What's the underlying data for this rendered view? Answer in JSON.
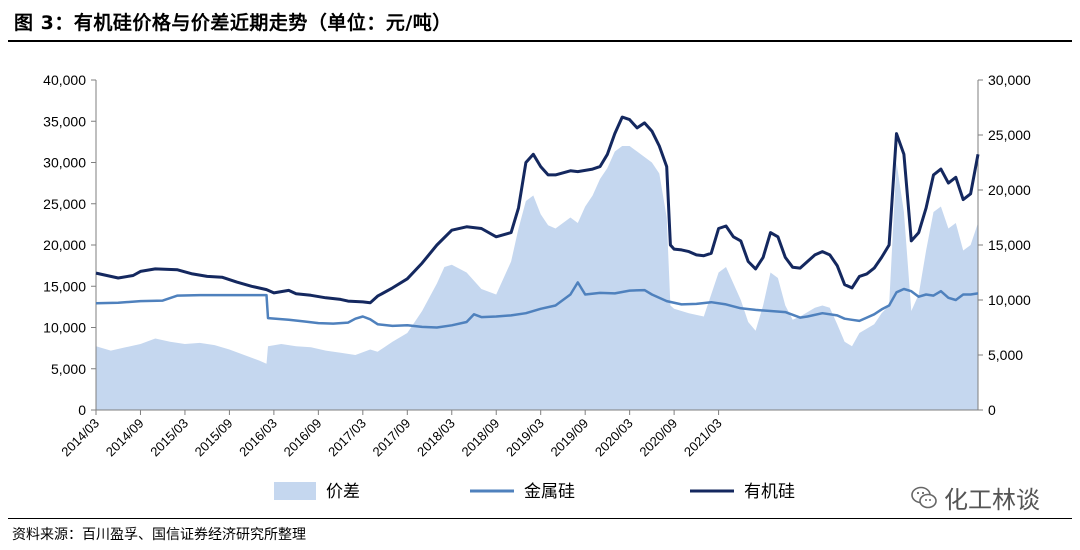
{
  "title": "图 3：有机硅价格与价差近期走势（单位：元/吨）",
  "source": "资料来源：百川盈孚、国信证券经济研究所整理",
  "watermark": "化工林谈",
  "colors": {
    "spread": "#c5d7ef",
    "metal": "#4f81bd",
    "organic": "#14285f",
    "axis": "#7f7f7f"
  },
  "chart_data": {
    "type": "line",
    "x_labels": [
      "2014/03",
      "2014/09",
      "2015/03",
      "2015/09",
      "2016/03",
      "2016/09",
      "2017/03",
      "2017/09",
      "2018/03",
      "2018/09",
      "2019/03",
      "2019/09",
      "2020/03",
      "2020/09",
      "2021/03"
    ],
    "y_left": {
      "min": 0,
      "max": 40000,
      "step": 5000,
      "ticks": [
        "0",
        "5,000",
        "10,000",
        "15,000",
        "20,000",
        "25,000",
        "30,000",
        "35,000",
        "40,000"
      ]
    },
    "y_right": {
      "min": 0,
      "max": 30000,
      "step": 5000,
      "ticks": [
        "0",
        "5,000",
        "10,000",
        "15,000",
        "20,000",
        "25,000",
        "30,000"
      ]
    },
    "legend": [
      "价差",
      "金属硅",
      "有机硅"
    ],
    "legend_position": "bottom",
    "x_range_months": [
      0,
      87
    ],
    "series": [
      {
        "name": "有机硅",
        "axis": "left",
        "type": "line",
        "points": [
          [
            0,
            16600
          ],
          [
            3,
            16000
          ],
          [
            5,
            16300
          ],
          [
            6,
            16800
          ],
          [
            8,
            17100
          ],
          [
            11,
            17000
          ],
          [
            13,
            16500
          ],
          [
            15,
            16200
          ],
          [
            17,
            16100
          ],
          [
            19,
            15500
          ],
          [
            21,
            15000
          ],
          [
            23,
            14600
          ],
          [
            24,
            14200
          ],
          [
            26,
            14500
          ],
          [
            27,
            14100
          ],
          [
            29,
            13900
          ],
          [
            31,
            13600
          ],
          [
            33,
            13400
          ],
          [
            34,
            13200
          ],
          [
            36,
            13100
          ],
          [
            37,
            13000
          ],
          [
            38,
            13800
          ],
          [
            40,
            14800
          ],
          [
            42,
            15900
          ],
          [
            44,
            17800
          ],
          [
            46,
            20000
          ],
          [
            48,
            21800
          ],
          [
            50,
            22200
          ],
          [
            52,
            22000
          ],
          [
            54,
            21000
          ],
          [
            56,
            21500
          ],
          [
            57,
            24500
          ],
          [
            58,
            30000
          ],
          [
            59,
            31000
          ],
          [
            60,
            29500
          ],
          [
            61,
            28500
          ],
          [
            62,
            28500
          ],
          [
            64,
            29000
          ],
          [
            65,
            28900
          ],
          [
            67,
            29200
          ],
          [
            68,
            29500
          ],
          [
            69,
            31000
          ],
          [
            70,
            33500
          ],
          [
            71,
            35500
          ],
          [
            72,
            35200
          ],
          [
            73,
            34200
          ],
          [
            74,
            34800
          ],
          [
            75,
            33800
          ],
          [
            76,
            32000
          ],
          [
            77,
            29500
          ],
          [
            77.5,
            20000
          ],
          [
            78,
            19500
          ],
          [
            79,
            19400
          ],
          [
            80,
            19200
          ],
          [
            81,
            18800
          ],
          [
            82,
            18700
          ],
          [
            83,
            19000
          ],
          [
            84,
            22000
          ],
          [
            85,
            22300
          ],
          [
            86,
            21000
          ],
          [
            87,
            20500
          ],
          [
            88,
            18000
          ],
          [
            89,
            17100
          ],
          [
            90,
            18500
          ],
          [
            91,
            21500
          ],
          [
            92,
            21000
          ],
          [
            93,
            18500
          ],
          [
            94,
            17300
          ],
          [
            95,
            17200
          ],
          [
            96,
            18000
          ],
          [
            97,
            18800
          ],
          [
            98,
            19200
          ],
          [
            99,
            18800
          ],
          [
            100,
            17500
          ],
          [
            101,
            15200
          ],
          [
            102,
            14800
          ],
          [
            103,
            16200
          ],
          [
            104,
            16500
          ],
          [
            105,
            17200
          ],
          [
            106,
            18500
          ],
          [
            107,
            20000
          ],
          [
            108,
            33500
          ],
          [
            109,
            31000
          ],
          [
            110,
            20500
          ],
          [
            111,
            21500
          ],
          [
            112,
            24500
          ],
          [
            113,
            28500
          ],
          [
            114,
            29200
          ],
          [
            115,
            27500
          ],
          [
            116,
            28200
          ],
          [
            117,
            25500
          ],
          [
            118,
            26200
          ],
          [
            119,
            31000
          ]
        ]
      },
      {
        "name": "金属硅",
        "axis": "right",
        "type": "line",
        "points": [
          [
            0,
            9700
          ],
          [
            3,
            9750
          ],
          [
            6,
            9900
          ],
          [
            9,
            9950
          ],
          [
            11,
            10400
          ],
          [
            14,
            10450
          ],
          [
            17,
            10450
          ],
          [
            20,
            10450
          ],
          [
            23,
            10450
          ],
          [
            23.2,
            8350
          ],
          [
            26,
            8200
          ],
          [
            28,
            8050
          ],
          [
            30,
            7900
          ],
          [
            32,
            7850
          ],
          [
            34,
            7950
          ],
          [
            35,
            8300
          ],
          [
            36,
            8500
          ],
          [
            37,
            8250
          ],
          [
            38,
            7800
          ],
          [
            40,
            7650
          ],
          [
            42,
            7700
          ],
          [
            44,
            7550
          ],
          [
            46,
            7500
          ],
          [
            48,
            7700
          ],
          [
            50,
            8000
          ],
          [
            51,
            8700
          ],
          [
            52,
            8450
          ],
          [
            54,
            8500
          ],
          [
            56,
            8600
          ],
          [
            58,
            8800
          ],
          [
            60,
            9200
          ],
          [
            62,
            9500
          ],
          [
            64,
            10500
          ],
          [
            65,
            11600
          ],
          [
            66,
            10500
          ],
          [
            68,
            10650
          ],
          [
            70,
            10600
          ],
          [
            72,
            10850
          ],
          [
            74,
            10900
          ],
          [
            75,
            10500
          ],
          [
            77,
            9900
          ],
          [
            79,
            9600
          ],
          [
            81,
            9650
          ],
          [
            83,
            9800
          ],
          [
            85,
            9600
          ],
          [
            87,
            9250
          ],
          [
            89,
            9100
          ],
          [
            91,
            9000
          ],
          [
            93,
            8900
          ],
          [
            95,
            8400
          ],
          [
            96,
            8500
          ],
          [
            98,
            8800
          ],
          [
            100,
            8600
          ],
          [
            101,
            8300
          ],
          [
            102,
            8200
          ],
          [
            103,
            8100
          ],
          [
            104,
            8400
          ],
          [
            105,
            8700
          ],
          [
            106,
            9150
          ],
          [
            107,
            9500
          ],
          [
            108,
            10700
          ],
          [
            109,
            11000
          ],
          [
            110,
            10800
          ],
          [
            111,
            10300
          ],
          [
            112,
            10500
          ],
          [
            113,
            10400
          ],
          [
            114,
            10800
          ],
          [
            115,
            10200
          ],
          [
            116,
            10000
          ],
          [
            117,
            10500
          ],
          [
            118,
            10500
          ],
          [
            119,
            10600
          ]
        ]
      },
      {
        "name": "价差",
        "axis": "right",
        "type": "area",
        "points": [
          [
            0,
            5800
          ],
          [
            2,
            5400
          ],
          [
            4,
            5700
          ],
          [
            6,
            6000
          ],
          [
            8,
            6500
          ],
          [
            10,
            6200
          ],
          [
            12,
            6000
          ],
          [
            14,
            6100
          ],
          [
            16,
            5900
          ],
          [
            18,
            5500
          ],
          [
            20,
            5000
          ],
          [
            22,
            4500
          ],
          [
            23,
            4200
          ],
          [
            23.2,
            5800
          ],
          [
            25,
            6000
          ],
          [
            27,
            5800
          ],
          [
            29,
            5700
          ],
          [
            31,
            5400
          ],
          [
            33,
            5200
          ],
          [
            35,
            5000
          ],
          [
            37,
            5500
          ],
          [
            38,
            5300
          ],
          [
            40,
            6200
          ],
          [
            42,
            7000
          ],
          [
            44,
            9000
          ],
          [
            46,
            11500
          ],
          [
            47,
            13000
          ],
          [
            48,
            13200
          ],
          [
            50,
            12500
          ],
          [
            52,
            11000
          ],
          [
            54,
            10500
          ],
          [
            56,
            13500
          ],
          [
            57,
            16500
          ],
          [
            58,
            19000
          ],
          [
            59,
            19500
          ],
          [
            60,
            17800
          ],
          [
            61,
            16800
          ],
          [
            62,
            16500
          ],
          [
            64,
            17500
          ],
          [
            65,
            17000
          ],
          [
            66,
            18500
          ],
          [
            67,
            19500
          ],
          [
            68,
            21000
          ],
          [
            69,
            22000
          ],
          [
            70,
            23500
          ],
          [
            71,
            24000
          ],
          [
            72,
            24000
          ],
          [
            73,
            23500
          ],
          [
            74,
            23000
          ],
          [
            75,
            22500
          ],
          [
            76,
            21500
          ],
          [
            77,
            17500
          ],
          [
            77.5,
            9500
          ],
          [
            78,
            9200
          ],
          [
            80,
            8800
          ],
          [
            82,
            8500
          ],
          [
            84,
            12500
          ],
          [
            85,
            13000
          ],
          [
            86,
            11500
          ],
          [
            87,
            10000
          ],
          [
            88,
            8000
          ],
          [
            89,
            7200
          ],
          [
            90,
            9500
          ],
          [
            91,
            12500
          ],
          [
            92,
            12000
          ],
          [
            93,
            9500
          ],
          [
            94,
            8200
          ],
          [
            95,
            8500
          ],
          [
            96,
            8900
          ],
          [
            97,
            9300
          ],
          [
            98,
            9500
          ],
          [
            99,
            9300
          ],
          [
            100,
            7800
          ],
          [
            101,
            6200
          ],
          [
            102,
            5800
          ],
          [
            103,
            7000
          ],
          [
            104,
            7400
          ],
          [
            105,
            7800
          ],
          [
            106,
            8800
          ],
          [
            107,
            9500
          ],
          [
            108,
            22500
          ],
          [
            109,
            18000
          ],
          [
            110,
            9000
          ],
          [
            111,
            10500
          ],
          [
            112,
            14500
          ],
          [
            113,
            18000
          ],
          [
            114,
            18500
          ],
          [
            115,
            16500
          ],
          [
            116,
            17000
          ],
          [
            117,
            14500
          ],
          [
            118,
            15000
          ],
          [
            119,
            17000
          ]
        ]
      }
    ]
  }
}
